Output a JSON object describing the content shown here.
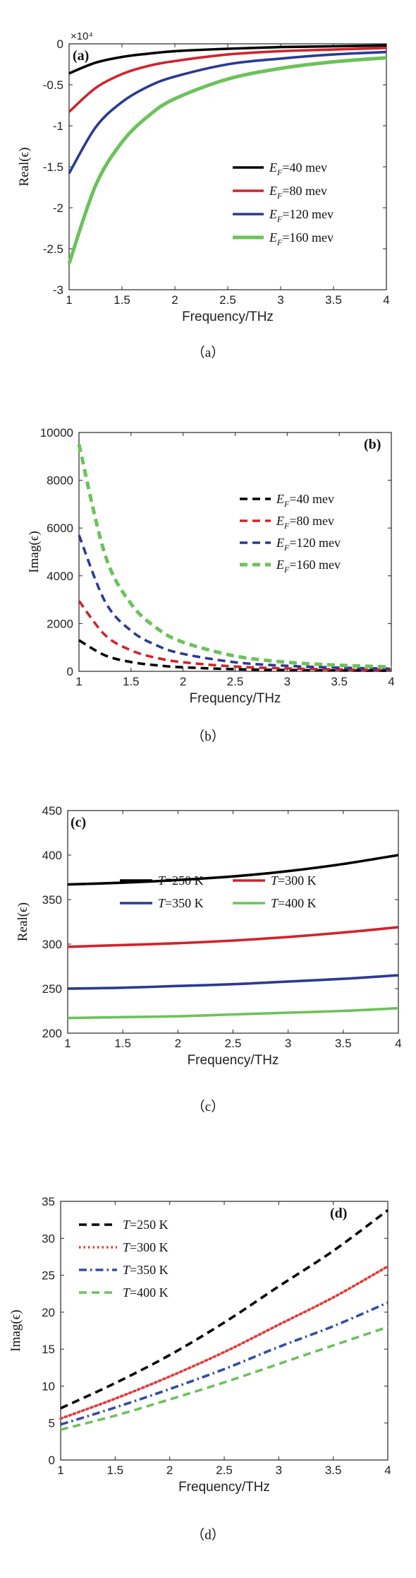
{
  "colors": {
    "black": "#000000",
    "red": "#d2232a",
    "blue": "#2b3a93",
    "green": "#6cc25a",
    "red_dotted": "#e33a3a",
    "blue_dashdot": "#2f4fa3",
    "green_dashed": "#6cc25a"
  },
  "chart_data": [
    {
      "type": "line",
      "panel": "(a)",
      "caption": "（a）",
      "xlabel": "Frequency/THz",
      "ylabel": "Real(ϵ)",
      "exponent_label": "×10⁴",
      "xlim": [
        1,
        4
      ],
      "ylim": [
        -3,
        0
      ],
      "xticks": [
        "1",
        "1.5",
        "2",
        "2.5",
        "3",
        "3.5",
        "4"
      ],
      "yticks": [
        "-3",
        "-2.5",
        "-2",
        "-1.5",
        "-1",
        "-0.5",
        "0"
      ],
      "legend_position": "lower-right",
      "x": [
        1,
        1.25,
        1.5,
        1.75,
        2,
        2.5,
        3,
        3.5,
        4
      ],
      "series": [
        {
          "name": "E_F=40 mev",
          "sub_name": "F",
          "main": "E",
          "rest": "=40 mev",
          "color": "black",
          "dash": "solid",
          "values": [
            -0.36,
            -0.23,
            -0.16,
            -0.12,
            -0.09,
            -0.06,
            -0.04,
            -0.03,
            -0.02
          ]
        },
        {
          "name": "E_F=80 mev",
          "sub_name": "F",
          "main": "E",
          "rest": "=80 mev",
          "color": "red",
          "dash": "solid",
          "values": [
            -0.83,
            -0.54,
            -0.37,
            -0.27,
            -0.21,
            -0.13,
            -0.09,
            -0.07,
            -0.05
          ]
        },
        {
          "name": "E_F=120 mev",
          "sub_name": "F",
          "main": "E",
          "rest": "=120 mev",
          "color": "blue",
          "dash": "solid",
          "values": [
            -1.58,
            -1.02,
            -0.71,
            -0.52,
            -0.4,
            -0.25,
            -0.18,
            -0.13,
            -0.1
          ]
        },
        {
          "name": "E_F=160 mev",
          "sub_name": "F",
          "main": "E",
          "rest": "=160 mev",
          "color": "green",
          "dash": "solid",
          "values": [
            -2.68,
            -1.73,
            -1.2,
            -0.88,
            -0.67,
            -0.43,
            -0.3,
            -0.22,
            -0.17
          ]
        }
      ]
    },
    {
      "type": "line",
      "panel": "(b)",
      "caption": "（b）",
      "xlabel": "Frequency/THz",
      "ylabel": "Imag(ϵ)",
      "xlim": [
        1,
        4
      ],
      "ylim": [
        0,
        10000
      ],
      "xticks": [
        "1",
        "1.5",
        "2",
        "2.5",
        "3",
        "3.5",
        "4"
      ],
      "yticks": [
        "0",
        "2000",
        "4000",
        "6000",
        "8000",
        "10000"
      ],
      "legend_position": "right",
      "x": [
        1,
        1.25,
        1.5,
        1.75,
        2,
        2.5,
        3,
        3.5,
        4
      ],
      "series": [
        {
          "name": "E_F=40 mev",
          "main": "E",
          "sub_name": "F",
          "rest": "=40 mev",
          "color": "black",
          "dash": "dashed",
          "values": [
            1300,
            670,
            390,
            250,
            170,
            90,
            55,
            37,
            27
          ]
        },
        {
          "name": "E_F=80 mev",
          "main": "E",
          "sub_name": "F",
          "rest": "=80 mev",
          "color": "red",
          "dash": "dashed",
          "values": [
            2950,
            1520,
            880,
            560,
            380,
            200,
            120,
            82,
            60
          ]
        },
        {
          "name": "E_F=120 mev",
          "main": "E",
          "sub_name": "F",
          "rest": "=120 mev",
          "color": "blue",
          "dash": "dashed",
          "values": [
            5700,
            2930,
            1700,
            1080,
            730,
            380,
            230,
            155,
            110
          ]
        },
        {
          "name": "E_F=160 mev",
          "main": "E",
          "sub_name": "F",
          "rest": "=160 mev",
          "color": "green",
          "dash": "dashed",
          "values": [
            9500,
            4890,
            2830,
            1800,
            1220,
            640,
            380,
            255,
            185
          ]
        }
      ]
    },
    {
      "type": "line",
      "panel": "(c)",
      "caption": "（c）",
      "xlabel": "Frequency/THz",
      "ylabel": "Real(ϵ)",
      "xlim": [
        1,
        4
      ],
      "ylim": [
        200,
        450
      ],
      "xticks": [
        "1",
        "1.5",
        "2",
        "2.5",
        "3",
        "3.5",
        "4"
      ],
      "yticks": [
        "200",
        "250",
        "300",
        "350",
        "400",
        "450"
      ],
      "legend_position": "center, two columns",
      "x": [
        1,
        1.5,
        2,
        2.5,
        3,
        3.5,
        4
      ],
      "series": [
        {
          "name": "T=250 K",
          "main": "T",
          "rest": "=250 K",
          "color": "black",
          "dash": "solid",
          "values": [
            367,
            369,
            372,
            376,
            382,
            390,
            400
          ]
        },
        {
          "name": "T=300 K",
          "main": "T",
          "rest": "=300 K",
          "color": "red",
          "dash": "solid",
          "values": [
            297,
            299,
            301,
            304,
            308,
            313,
            319
          ]
        },
        {
          "name": "T=350 K",
          "main": "T",
          "rest": "=350 K",
          "color": "blue",
          "dash": "solid",
          "values": [
            250,
            251,
            253,
            255,
            258,
            261,
            265
          ]
        },
        {
          "name": "T=400 K",
          "main": "T",
          "rest": "=400 K",
          "color": "green",
          "dash": "solid",
          "values": [
            217,
            218,
            219,
            221,
            223,
            225,
            228
          ]
        }
      ]
    },
    {
      "type": "line",
      "panel": "(d)",
      "caption": "（d）",
      "xlabel": "Frequency/THz",
      "ylabel": "Imag(ϵ)",
      "xlim": [
        1,
        4
      ],
      "ylim": [
        0,
        35
      ],
      "xticks": [
        "1",
        "1.5",
        "2",
        "2.5",
        "3",
        "3.5",
        "4"
      ],
      "yticks": [
        "0",
        "5",
        "10",
        "15",
        "20",
        "25",
        "30",
        "35"
      ],
      "legend_position": "top-left",
      "x": [
        1,
        1.5,
        2,
        2.5,
        3,
        3.5,
        4
      ],
      "series": [
        {
          "name": "T=250 K",
          "main": "T",
          "rest": "=250 K",
          "color": "black",
          "dash": "dashed",
          "values": [
            7.0,
            10.4,
            14.2,
            18.6,
            23.5,
            28.3,
            33.8
          ]
        },
        {
          "name": "T=300 K",
          "main": "T",
          "rest": "=300 K",
          "color": "red_dotted",
          "dash": "dotted",
          "values": [
            5.6,
            8.3,
            11.3,
            14.6,
            18.3,
            22.0,
            26.2
          ]
        },
        {
          "name": "T=350 K",
          "main": "T",
          "rest": "=350 K",
          "color": "blue_dashdot",
          "dash": "dashdot",
          "values": [
            4.8,
            7.1,
            9.6,
            12.3,
            15.3,
            18.1,
            21.3
          ]
        },
        {
          "name": "T=400 K",
          "main": "T",
          "rest": "=400 K",
          "color": "green_dashed",
          "dash": "dashed",
          "values": [
            4.1,
            6.0,
            8.2,
            10.5,
            13.0,
            15.5,
            18.0
          ]
        }
      ]
    }
  ]
}
